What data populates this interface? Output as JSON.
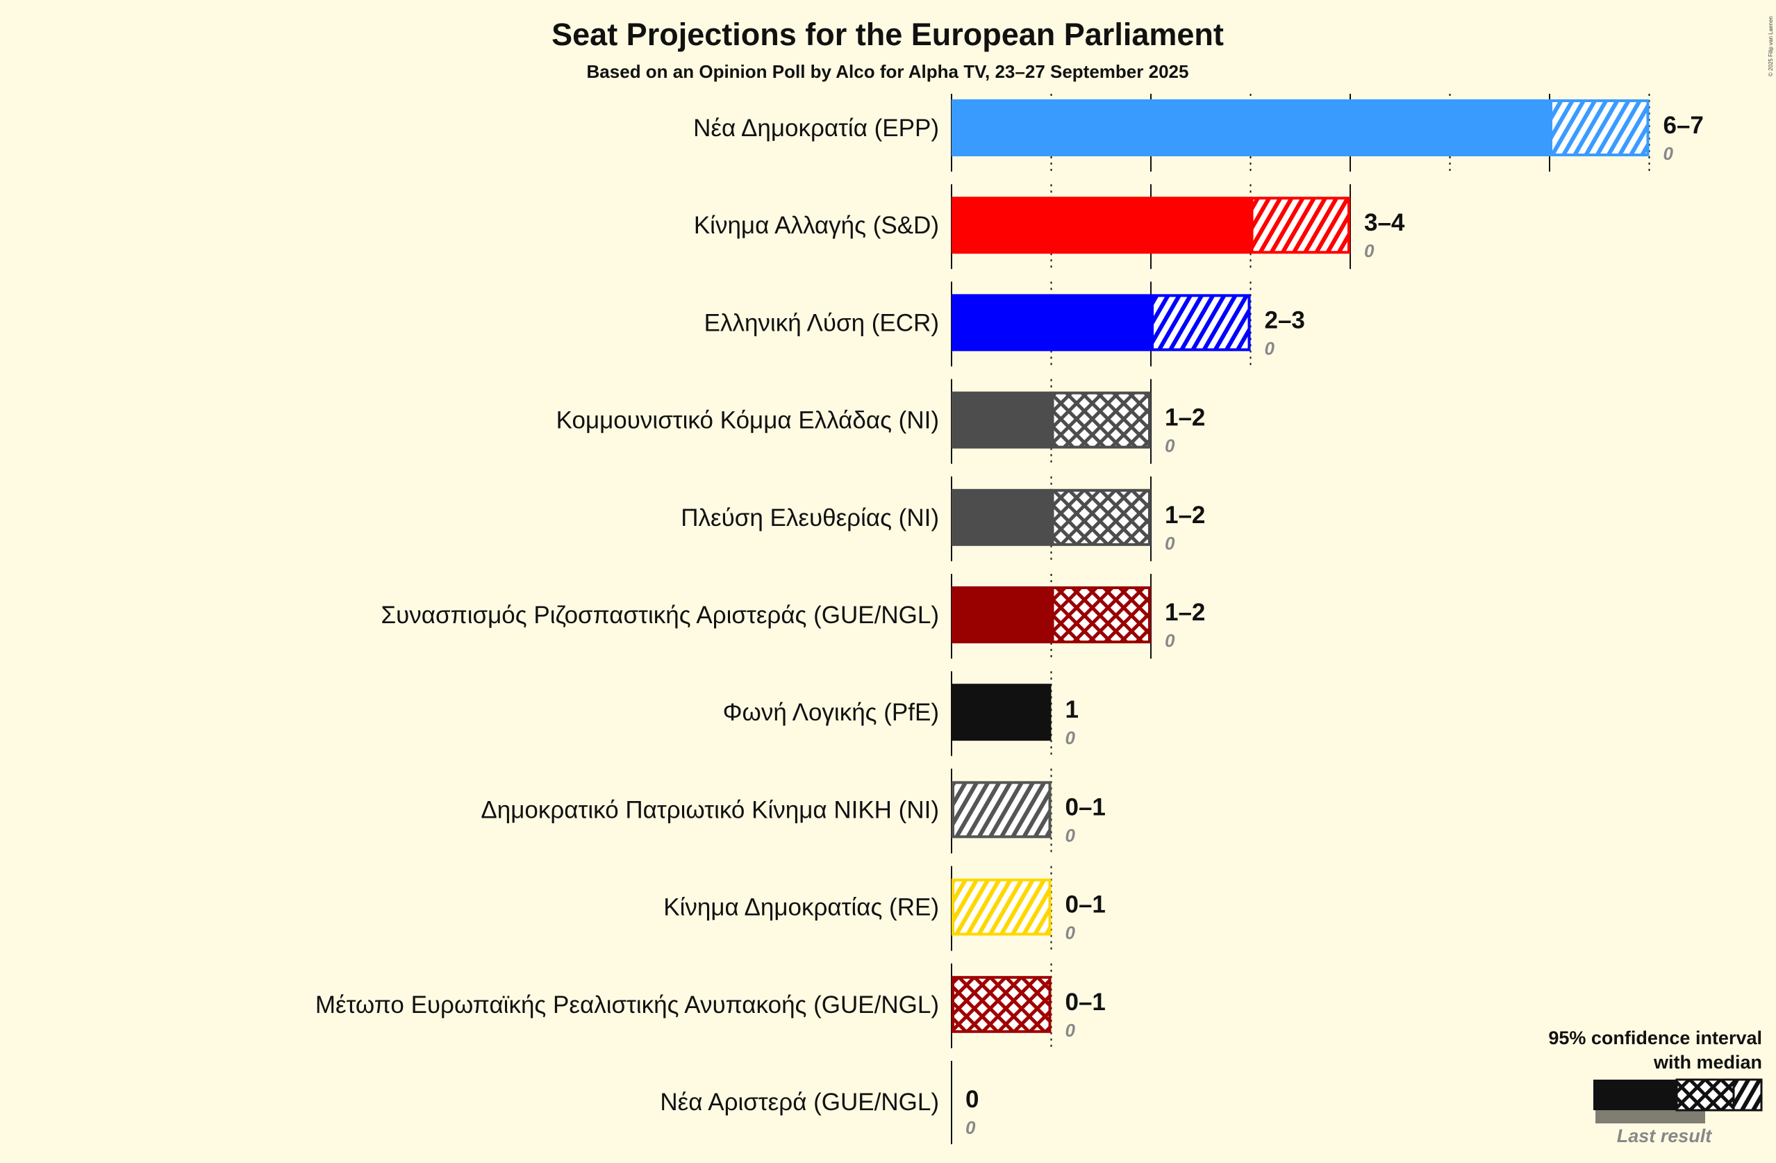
{
  "chart_data": {
    "type": "bar",
    "title": "Seat Projections for the European Parliament",
    "subtitle": "Based on an Opinion Poll by Alco for Alpha TV, 23–27 September 2025",
    "copyright": "© 2025 Filip van Laenen",
    "xlim": [
      0,
      7
    ],
    "parties": [
      {
        "name": "Νέα Δημοκρατία (EPP)",
        "color": "#3a9bff",
        "solid_to": 6,
        "cross_to": 6,
        "hatch_to": 7,
        "range": "6–7",
        "last": "0"
      },
      {
        "name": "Κίνημα Αλλαγής (S&D)",
        "color": "#ff0000",
        "solid_to": 3,
        "cross_to": 3,
        "hatch_to": 4,
        "range": "3–4",
        "last": "0"
      },
      {
        "name": "Ελληνική Λύση (ECR)",
        "color": "#0000ff",
        "solid_to": 2,
        "cross_to": 2,
        "hatch_to": 3,
        "range": "2–3",
        "last": "0"
      },
      {
        "name": "Κομμουνιστικό Κόμμα Ελλάδας (NI)",
        "color": "#4d4d4d",
        "solid_to": 1,
        "cross_to": 2,
        "hatch_to": 2,
        "range": "1–2",
        "last": "0"
      },
      {
        "name": "Πλεύση Ελευθερίας (NI)",
        "color": "#4d4d4d",
        "solid_to": 1,
        "cross_to": 2,
        "hatch_to": 2,
        "range": "1–2",
        "last": "0"
      },
      {
        "name": "Συνασπισμός Ριζοσπαστικής Αριστεράς (GUE/NGL)",
        "color": "#990000",
        "solid_to": 1,
        "cross_to": 2,
        "hatch_to": 2,
        "range": "1–2",
        "last": "0"
      },
      {
        "name": "Φωνή Λογικής (PfE)",
        "color": "#111111",
        "solid_to": 1,
        "cross_to": 1,
        "hatch_to": 1,
        "range": "1",
        "last": "0"
      },
      {
        "name": "Δημοκρατικό Πατριωτικό Κίνημα ΝΙΚΗ (NI)",
        "color": "#555555",
        "solid_to": 0,
        "cross_to": 0,
        "hatch_to": 1,
        "range": "0–1",
        "last": "0"
      },
      {
        "name": "Κίνημα Δημοκρατίας (RE)",
        "color": "#ffd700",
        "solid_to": 0,
        "cross_to": 0,
        "hatch_to": 1,
        "range": "0–1",
        "last": "0"
      },
      {
        "name": "Μέτωπο Ευρωπαϊκής Ρεαλιστικής Ανυπακοής (GUE/NGL)",
        "color": "#a00000",
        "solid_to": 0,
        "cross_to": 1,
        "hatch_to": 1,
        "range": "0–1",
        "last": "0"
      },
      {
        "name": "Νέα Αριστερά (GUE/NGL)",
        "color": "#111111",
        "solid_to": 0,
        "cross_to": 0,
        "hatch_to": 0,
        "range": "0",
        "last": "0"
      }
    ],
    "legend": {
      "line1": "95% confidence interval",
      "line2": "with median",
      "last_result": "Last result",
      "placement": "bottom-right"
    }
  }
}
